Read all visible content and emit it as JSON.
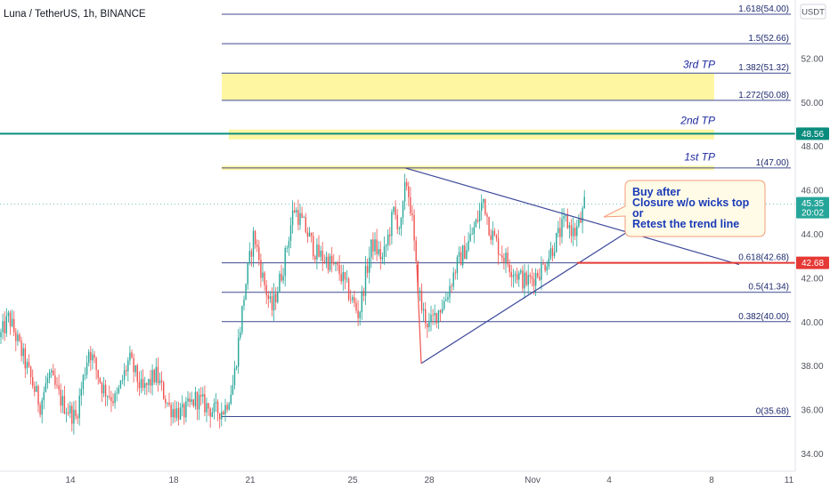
{
  "header": {
    "title": "Luna / TetherUS, 1h, BINANCE",
    "currency": "USDT"
  },
  "colors": {
    "up": "#26a69a",
    "down": "#ef5350",
    "fib": "#3f4a8f",
    "tp_zone": "#fff59d",
    "teal_line": "#0a8c7d",
    "red_line": "#e53935",
    "trend": "#3d4a9c",
    "callout_bg": "#fffbe6",
    "callout_border": "#f39c7a"
  },
  "chart_data": {
    "type": "candlestick",
    "symbol": "Luna / TetherUS",
    "interval": "1h",
    "exchange": "BINANCE",
    "ylim": [
      33.6,
      55.2
    ],
    "y_ticks": [
      34,
      36,
      38,
      40,
      42,
      44,
      46,
      48,
      50,
      52
    ],
    "x_ticks": [
      "14",
      "18",
      "21",
      "25",
      "28",
      "Nov",
      "4",
      "8",
      "11"
    ],
    "fib_levels": [
      {
        "label": "1.618(54.00)",
        "value": 54.0
      },
      {
        "label": "1.5(52.66)",
        "value": 52.66
      },
      {
        "label": "1.382(51.32)",
        "value": 51.32
      },
      {
        "label": "1.272(50.08)",
        "value": 50.08
      },
      {
        "label": "1(47.00)",
        "value": 47.0
      },
      {
        "label": "0.618(42.68)",
        "value": 42.68
      },
      {
        "label": "0.5(41.34)",
        "value": 41.34
      },
      {
        "label": "0.382(40.00)",
        "value": 40.0
      },
      {
        "label": "0(35.68)",
        "value": 35.68
      }
    ],
    "take_profits": [
      {
        "label": "3rd TP",
        "low": 50.1,
        "high": 51.3
      },
      {
        "label": "2nd TP",
        "low": 48.3,
        "high": 48.75
      },
      {
        "label": "1st TP",
        "low": 46.9,
        "high": 47.1
      }
    ],
    "price_tags": [
      {
        "label": "48.56",
        "value": 48.56
      },
      {
        "label": "45.35",
        "value": 45.35,
        "sub": "20:02"
      },
      {
        "label": "42.68",
        "value": 42.68
      }
    ],
    "annotation": {
      "lines": [
        "Buy after",
        "Closure w/o wicks top",
        "or",
        "Retest the trend line"
      ]
    }
  }
}
